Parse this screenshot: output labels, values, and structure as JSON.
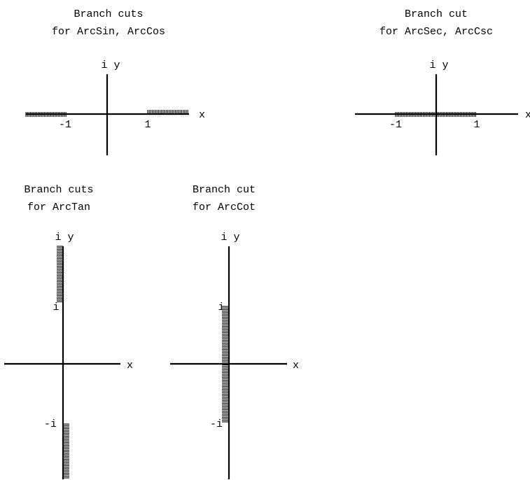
{
  "diagrams": [
    {
      "id": "arcsin-arccos",
      "title_lines": [
        "Branch cuts",
        "for ArcSin, ArcCos"
      ],
      "y_axis_label": "i y",
      "x_axis_label": "x",
      "tick_labels": [
        "-1",
        "1"
      ],
      "cut_orientation": "horizontal",
      "cuts": [
        {
          "from": "-inf",
          "to": -1
        },
        {
          "from": 1,
          "to": "inf"
        }
      ]
    },
    {
      "id": "arcsec-arccsc",
      "title_lines": [
        "Branch cut",
        "for ArcSec, ArcCsc"
      ],
      "y_axis_label": "i y",
      "x_axis_label": "x",
      "tick_labels": [
        "-1",
        "1"
      ],
      "cut_orientation": "horizontal",
      "cuts": [
        {
          "from": -1,
          "to": 1
        }
      ]
    },
    {
      "id": "arctan",
      "title_lines": [
        "Branch cuts",
        "for ArcTan"
      ],
      "y_axis_label": "i y",
      "x_axis_label": "x",
      "tick_labels": [
        "i",
        "-i"
      ],
      "cut_orientation": "vertical",
      "cuts": [
        {
          "from": 1,
          "to": "inf"
        },
        {
          "from": "-inf",
          "to": -1
        }
      ]
    },
    {
      "id": "arccot",
      "title_lines": [
        "Branch cut",
        "for ArcCot"
      ],
      "y_axis_label": "i y",
      "x_axis_label": "x",
      "tick_labels": [
        "i",
        "-i"
      ],
      "cut_orientation": "vertical",
      "cuts": [
        {
          "from": -1,
          "to": 1
        }
      ]
    }
  ]
}
